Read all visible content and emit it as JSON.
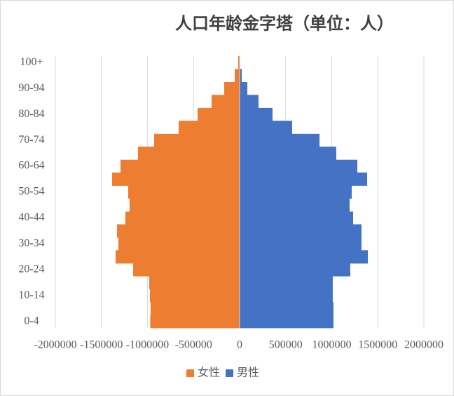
{
  "chart_data": {
    "type": "pyramid",
    "title": "人口年龄金字塔（单位：人）",
    "categories": [
      "0-4",
      null,
      "10-14",
      null,
      "20-24",
      null,
      "30-34",
      null,
      "40-44",
      null,
      "50-54",
      null,
      "60-64",
      null,
      "70-74",
      null,
      "80-84",
      null,
      "90-94",
      null,
      "100+"
    ],
    "series": [
      {
        "name": "女性",
        "color": "#ed7d31",
        "values": [
          -970000,
          -966000,
          -973000,
          -981000,
          -1156000,
          -1346000,
          -1316000,
          -1331000,
          -1240000,
          -1194000,
          -1209000,
          -1384000,
          -1293000,
          -1103000,
          -928000,
          -662000,
          -456000,
          -304000,
          -167000,
          -53000,
          -15000
        ]
      },
      {
        "name": "男性",
        "color": "#4472c4",
        "values": [
          1019000,
          1019000,
          1011000,
          1011000,
          1201000,
          1392000,
          1323000,
          1323000,
          1232000,
          1194000,
          1217000,
          1384000,
          1278000,
          1049000,
          867000,
          570000,
          357000,
          205000,
          84000,
          23000,
          5000
        ]
      }
    ],
    "xlim": [
      -2000000,
      2000000
    ],
    "xticks": [
      -2000000,
      -1500000,
      -1000000,
      -500000,
      0,
      500000,
      1000000,
      1500000,
      2000000
    ],
    "grid": true,
    "legend": "bottom"
  }
}
